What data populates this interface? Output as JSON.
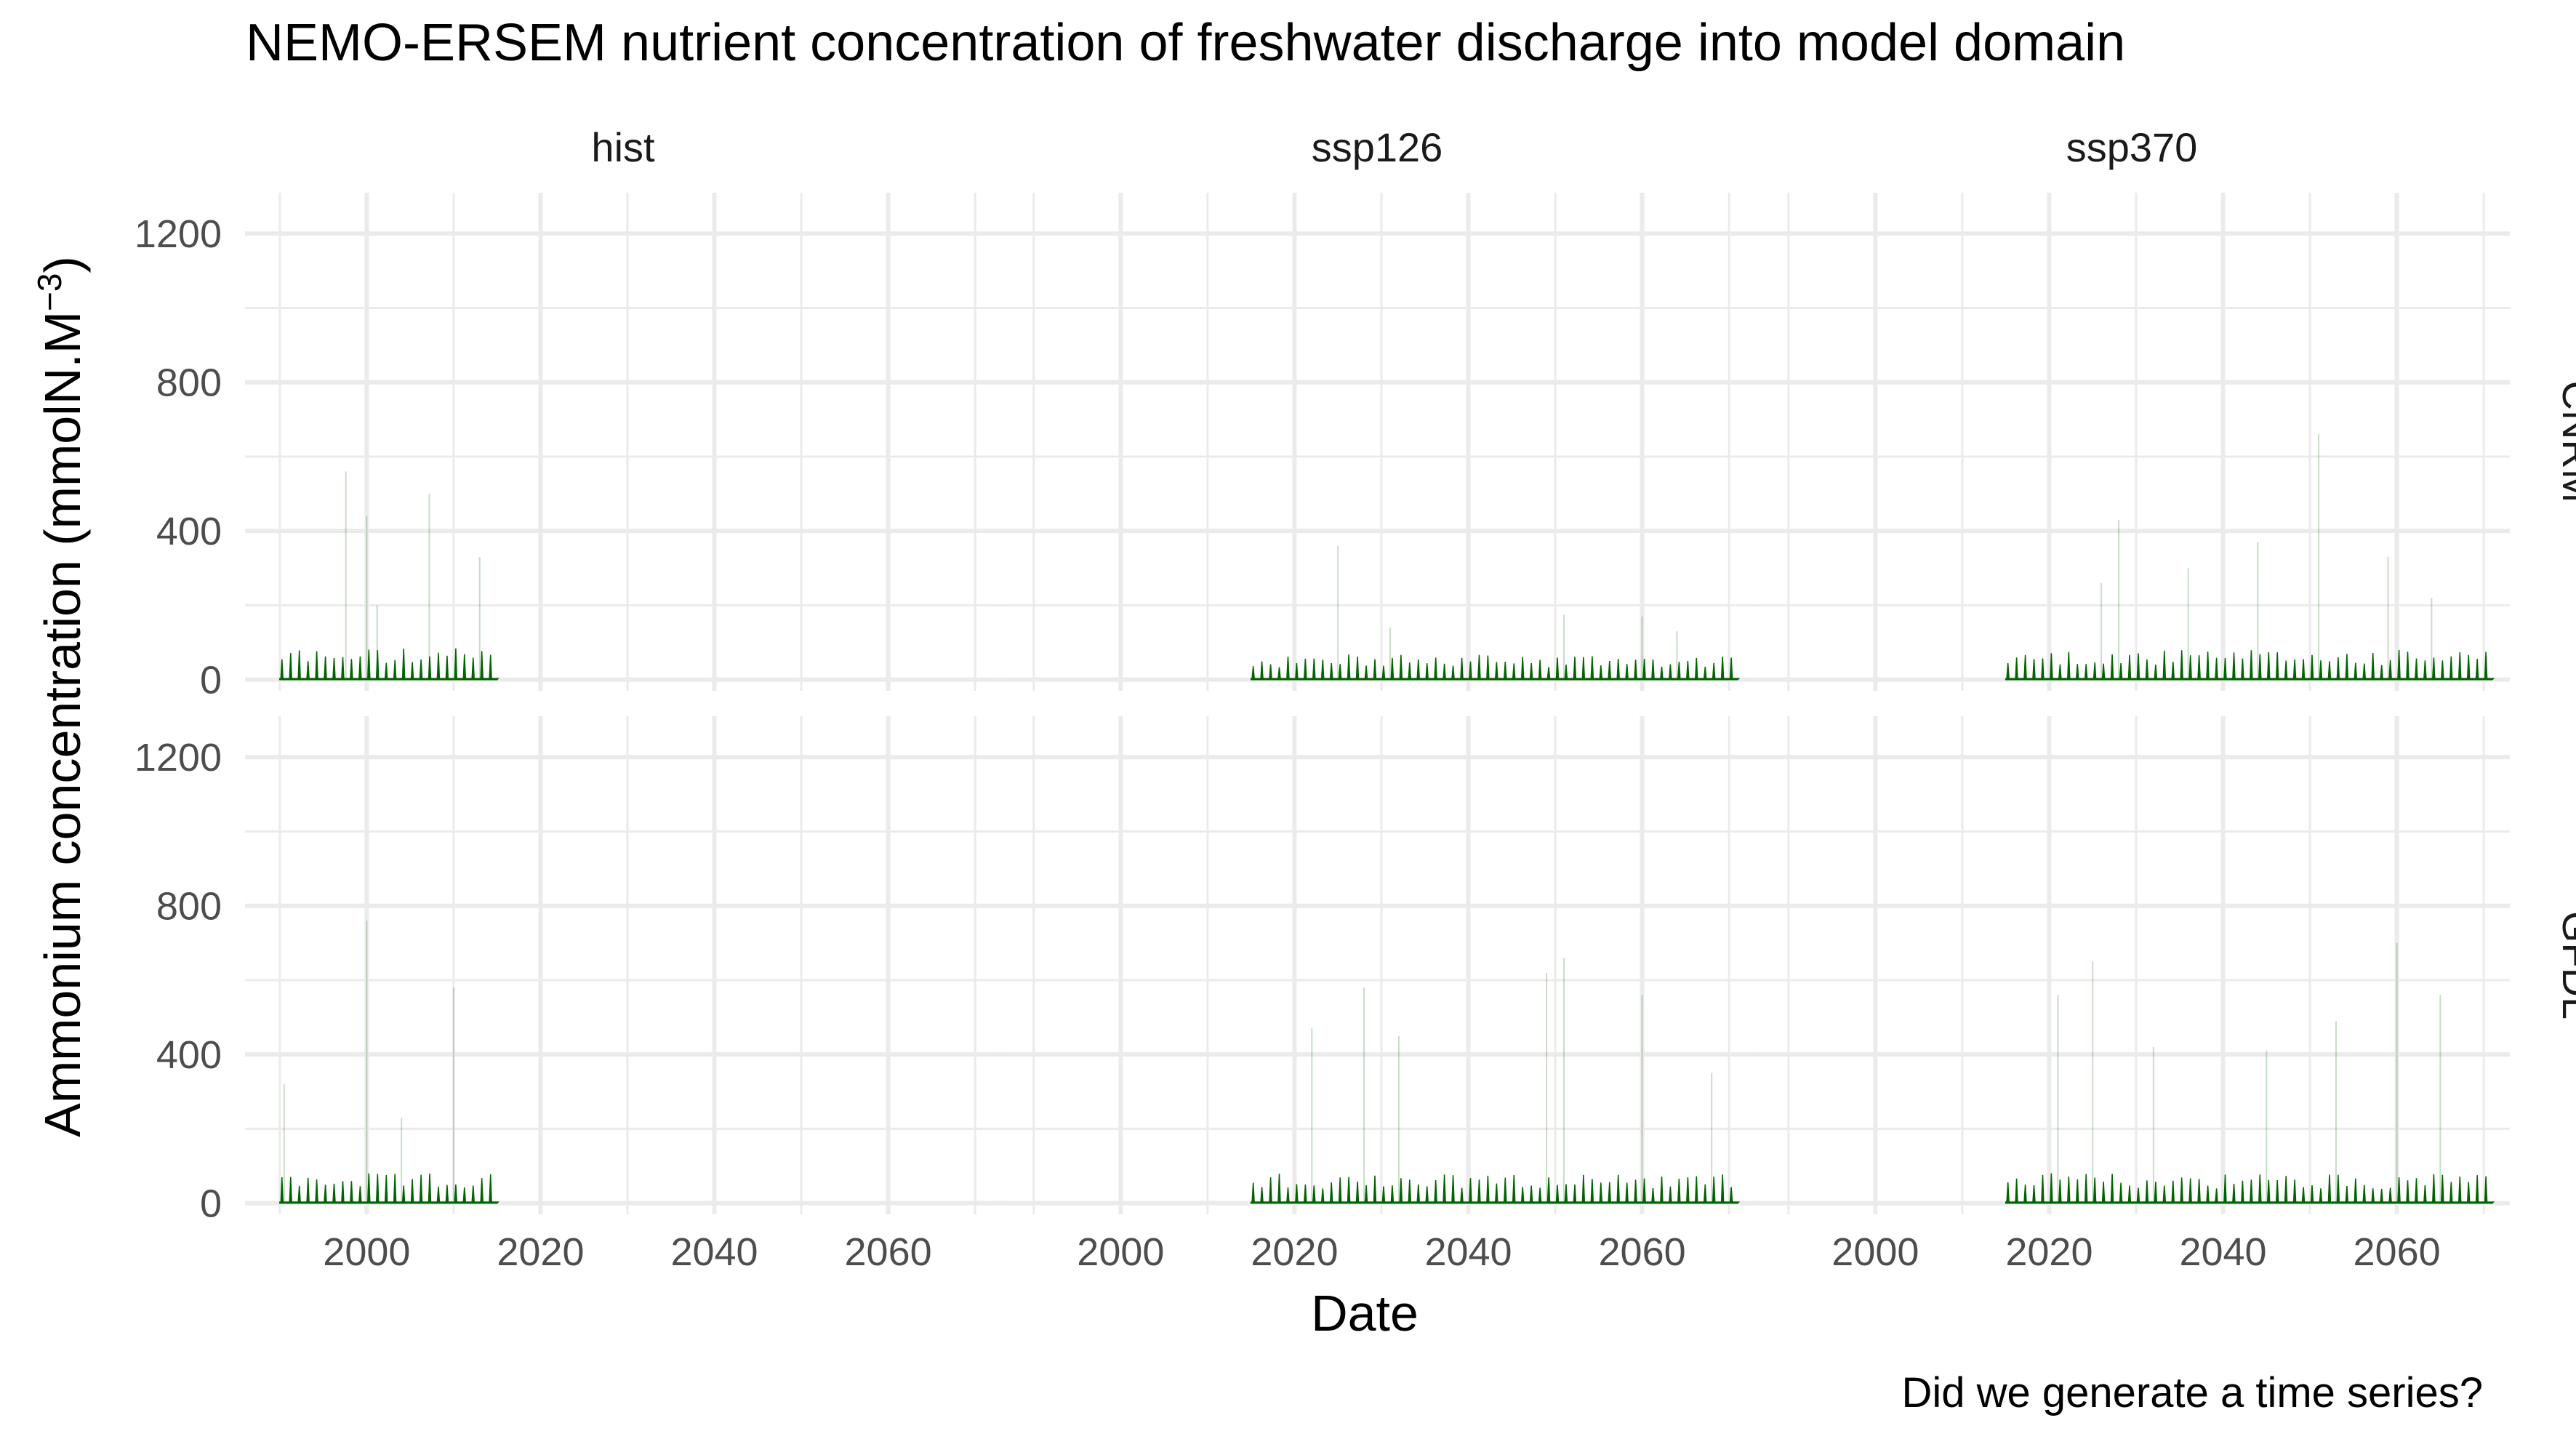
{
  "chart_data": {
    "type": "area",
    "title": "NEMO-ERSEM nutrient concentration of freshwater discharge into model domain",
    "caption": "Did we generate a time series?",
    "xlabel": "Date",
    "ylabel_main": "Ammonium concentration (mmolN.M",
    "ylabel_sup": "−3",
    "ylabel_close": ")",
    "xlim": [
      1986,
      2073
    ],
    "ylim": [
      -30,
      1310
    ],
    "x_ticks": [
      2000,
      2020,
      2040,
      2060
    ],
    "x_tick_labels": [
      "2000",
      "2020",
      "2040",
      "2060"
    ],
    "y_ticks": [
      0,
      400,
      800,
      1200
    ],
    "y_tick_labels": [
      "0",
      "400",
      "800",
      "1200"
    ],
    "grid": true,
    "fill_color": "#006400",
    "column_facets": [
      "hist",
      "ssp126",
      "ssp370"
    ],
    "row_facets": [
      "CNRM",
      "GFDL"
    ],
    "panels": [
      {
        "row": "CNRM",
        "col": "hist",
        "x_start": 1990,
        "x_end": 2015,
        "typical_peak": 75,
        "max_spike": 560,
        "spikes": [
          {
            "x": 1997.6,
            "y": 560
          },
          {
            "x": 2000.0,
            "y": 440
          },
          {
            "x": 2001.2,
            "y": 200
          },
          {
            "x": 2007.2,
            "y": 500
          },
          {
            "x": 2013.0,
            "y": 330
          }
        ]
      },
      {
        "row": "CNRM",
        "col": "ssp126",
        "x_start": 2015,
        "x_end": 2071,
        "typical_peak": 60,
        "max_spike": 360,
        "spikes": [
          {
            "x": 2025.0,
            "y": 360
          },
          {
            "x": 2031.0,
            "y": 140
          },
          {
            "x": 2051.0,
            "y": 175
          },
          {
            "x": 2060.0,
            "y": 170
          },
          {
            "x": 2064.0,
            "y": 130
          }
        ]
      },
      {
        "row": "CNRM",
        "col": "ssp370",
        "x_start": 2015,
        "x_end": 2071,
        "typical_peak": 70,
        "max_spike": 660,
        "spikes": [
          {
            "x": 2026.0,
            "y": 260
          },
          {
            "x": 2028.0,
            "y": 430
          },
          {
            "x": 2036.0,
            "y": 300
          },
          {
            "x": 2044.0,
            "y": 370
          },
          {
            "x": 2051.0,
            "y": 660
          },
          {
            "x": 2059.0,
            "y": 330
          },
          {
            "x": 2064.0,
            "y": 220
          }
        ]
      },
      {
        "row": "GFDL",
        "col": "hist",
        "x_start": 1990,
        "x_end": 2015,
        "typical_peak": 70,
        "max_spike": 760,
        "spikes": [
          {
            "x": 1990.5,
            "y": 320
          },
          {
            "x": 2000.0,
            "y": 760
          },
          {
            "x": 2004.0,
            "y": 230
          },
          {
            "x": 2010.0,
            "y": 580
          }
        ]
      },
      {
        "row": "GFDL",
        "col": "ssp126",
        "x_start": 2015,
        "x_end": 2071,
        "typical_peak": 70,
        "max_spike": 660,
        "spikes": [
          {
            "x": 2022.0,
            "y": 470
          },
          {
            "x": 2028.0,
            "y": 580
          },
          {
            "x": 2032.0,
            "y": 450
          },
          {
            "x": 2049.0,
            "y": 620
          },
          {
            "x": 2051.0,
            "y": 660
          },
          {
            "x": 2060.0,
            "y": 560
          },
          {
            "x": 2068.0,
            "y": 350
          }
        ]
      },
      {
        "row": "GFDL",
        "col": "ssp370",
        "x_start": 2015,
        "x_end": 2071,
        "typical_peak": 70,
        "max_spike": 700,
        "spikes": [
          {
            "x": 2021.0,
            "y": 560
          },
          {
            "x": 2025.0,
            "y": 650
          },
          {
            "x": 2032.0,
            "y": 420
          },
          {
            "x": 2045.0,
            "y": 410
          },
          {
            "x": 2053.0,
            "y": 490
          },
          {
            "x": 2060.0,
            "y": 700
          },
          {
            "x": 2065.0,
            "y": 560
          }
        ]
      }
    ]
  }
}
